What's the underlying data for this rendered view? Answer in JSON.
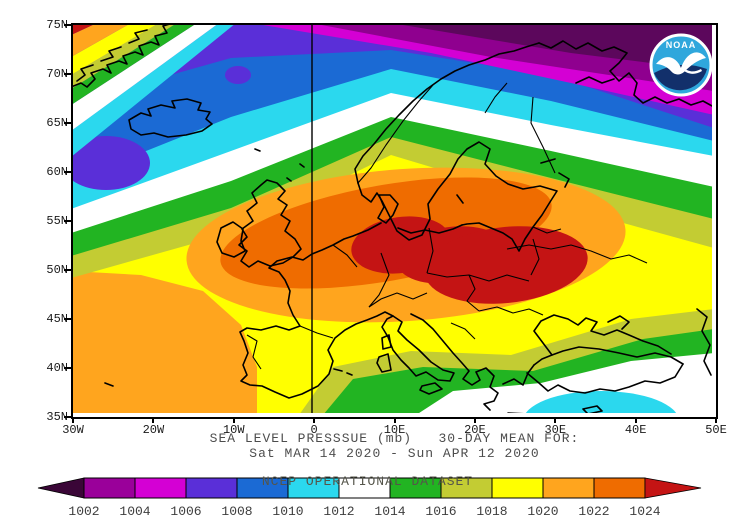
{
  "logo": {
    "text": "NOAA"
  },
  "map": {
    "lat_labels": [
      "75N",
      "70N",
      "65N",
      "60N",
      "55N",
      "50N",
      "45N",
      "40N",
      "35N"
    ],
    "lon_labels": [
      "30W",
      "20W",
      "10W",
      "0",
      "10E",
      "20E",
      "30E",
      "40E",
      "50E"
    ]
  },
  "titles": {
    "line1": "SEA LEVEL PRESSSUE (mb)   30-DAY MEAN FOR:",
    "line2": "Sat MAR 14 2020 - Sun APR 12 2020",
    "dataset": "NCEP OPERATIONAL DATASET"
  },
  "colorbar": {
    "units": "mb",
    "labels": [
      "1002",
      "1004",
      "1006",
      "1008",
      "1010",
      "1012",
      "1014",
      "1016",
      "1018",
      "1020",
      "1022",
      "1024"
    ],
    "segment_colors": [
      "#9A009A",
      "#D400D4",
      "#5A2FD8",
      "#1B6AD4",
      "#2BD8EE",
      "#FFFFFF",
      "#22B422",
      "#C3CC33",
      "#FFFF00",
      "#FFA51E",
      "#EF6C00"
    ],
    "below_color": "#3A0637",
    "above_color": "#C41414",
    "scale_min": 1002,
    "scale_max": 1024,
    "scale_step": 2
  },
  "field_colors": {
    "lowest": "#5C075C",
    "dark_magenta": "#8F008F",
    "magenta": "#D400D4",
    "violet": "#5A2FD8",
    "blue": "#1B6AD4",
    "cyan": "#2BD8EE",
    "white": "#FFFFFF",
    "green": "#22B422",
    "olive": "#C3CC33",
    "yellow": "#FFFF00",
    "orange": "#FFA51E",
    "dark_orange": "#EF6C00",
    "dark_red": "#C41414"
  }
}
